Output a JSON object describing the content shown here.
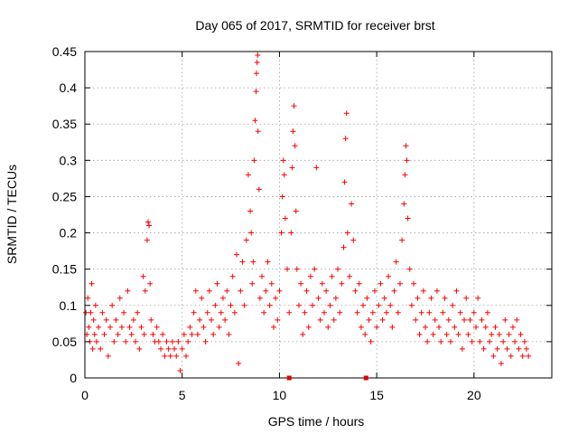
{
  "chart_data": {
    "type": "scatter",
    "title": "Day 065 of 2017, SRMTID for receiver brst",
    "xlabel": "GPS time / hours",
    "ylabel": "SRMTID / TECUs",
    "xlim": [
      0,
      24
    ],
    "ylim": [
      0,
      0.45
    ],
    "grid": true,
    "marker": "plus",
    "color": "#ff0000",
    "x_ticks": [
      0,
      5,
      10,
      15,
      20
    ],
    "x_tick_labels": [
      "0",
      "5",
      "10",
      "15",
      "20"
    ],
    "y_ticks": [
      0,
      0.05,
      0.1,
      0.15,
      0.2,
      0.25,
      0.3,
      0.35,
      0.4,
      0.45
    ],
    "y_tick_labels": [
      "0",
      "0.05",
      "0.1",
      "0.15",
      "0.2",
      "0.25",
      "0.3",
      "0.35",
      "0.4",
      "0.45"
    ],
    "axis_markers_x": [
      10.5,
      14.45
    ],
    "series": [
      {
        "name": "SRMTID",
        "points": [
          [
            0.05,
            0.09
          ],
          [
            0.1,
            0.06
          ],
          [
            0.15,
            0.11
          ],
          [
            0.2,
            0.07
          ],
          [
            0.25,
            0.05
          ],
          [
            0.3,
            0.09
          ],
          [
            0.35,
            0.13
          ],
          [
            0.4,
            0.04
          ],
          [
            0.45,
            0.08
          ],
          [
            0.5,
            0.06
          ],
          [
            0.55,
            0.1
          ],
          [
            0.6,
            0.05
          ],
          [
            0.7,
            0.07
          ],
          [
            0.8,
            0.04
          ],
          [
            0.9,
            0.09
          ],
          [
            1.0,
            0.06
          ],
          [
            1.1,
            0.08
          ],
          [
            1.2,
            0.03
          ],
          [
            1.3,
            0.07
          ],
          [
            1.4,
            0.1
          ],
          [
            1.5,
            0.05
          ],
          [
            1.6,
            0.08
          ],
          [
            1.7,
            0.06
          ],
          [
            1.8,
            0.11
          ],
          [
            1.9,
            0.07
          ],
          [
            2.0,
            0.09
          ],
          [
            2.1,
            0.05
          ],
          [
            2.2,
            0.12
          ],
          [
            2.3,
            0.07
          ],
          [
            2.4,
            0.06
          ],
          [
            2.5,
            0.08
          ],
          [
            2.6,
            0.05
          ],
          [
            2.7,
            0.09
          ],
          [
            2.8,
            0.04
          ],
          [
            2.9,
            0.07
          ],
          [
            3.0,
            0.14
          ],
          [
            3.05,
            0.06
          ],
          [
            3.1,
            0.12
          ],
          [
            3.2,
            0.19
          ],
          [
            3.25,
            0.215
          ],
          [
            3.3,
            0.21
          ],
          [
            3.35,
            0.13
          ],
          [
            3.4,
            0.08
          ],
          [
            3.5,
            0.06
          ],
          [
            3.6,
            0.05
          ],
          [
            3.7,
            0.07
          ],
          [
            3.8,
            0.05
          ],
          [
            3.9,
            0.04
          ],
          [
            4.0,
            0.06
          ],
          [
            4.1,
            0.03
          ],
          [
            4.2,
            0.05
          ],
          [
            4.3,
            0.04
          ],
          [
            4.4,
            0.03
          ],
          [
            4.5,
            0.05
          ],
          [
            4.6,
            0.04
          ],
          [
            4.7,
            0.03
          ],
          [
            4.8,
            0.05
          ],
          [
            4.9,
            0.01
          ],
          [
            5.0,
            0.04
          ],
          [
            5.1,
            0.06
          ],
          [
            5.2,
            0.03
          ],
          [
            5.3,
            0.05
          ],
          [
            5.4,
            0.07
          ],
          [
            5.5,
            0.06
          ],
          [
            5.6,
            0.09
          ],
          [
            5.7,
            0.12
          ],
          [
            5.8,
            0.06
          ],
          [
            5.9,
            0.08
          ],
          [
            6.0,
            0.11
          ],
          [
            6.1,
            0.07
          ],
          [
            6.2,
            0.05
          ],
          [
            6.3,
            0.09
          ],
          [
            6.4,
            0.12
          ],
          [
            6.5,
            0.08
          ],
          [
            6.6,
            0.06
          ],
          [
            6.7,
            0.1
          ],
          [
            6.8,
            0.13
          ],
          [
            6.9,
            0.07
          ],
          [
            7.0,
            0.09
          ],
          [
            7.1,
            0.11
          ],
          [
            7.2,
            0.08
          ],
          [
            7.3,
            0.12
          ],
          [
            7.4,
            0.06
          ],
          [
            7.5,
            0.1
          ],
          [
            7.6,
            0.14
          ],
          [
            7.7,
            0.09
          ],
          [
            7.8,
            0.17
          ],
          [
            7.9,
            0.02
          ],
          [
            8.0,
            0.12
          ],
          [
            8.1,
            0.16
          ],
          [
            8.2,
            0.1
          ],
          [
            8.3,
            0.19
          ],
          [
            8.4,
            0.28
          ],
          [
            8.5,
            0.23
          ],
          [
            8.55,
            0.2
          ],
          [
            8.6,
            0.13
          ],
          [
            8.65,
            0.16
          ],
          [
            8.7,
            0.3
          ],
          [
            8.75,
            0.355
          ],
          [
            8.8,
            0.395
          ],
          [
            8.82,
            0.42
          ],
          [
            8.85,
            0.435
          ],
          [
            8.88,
            0.445
          ],
          [
            8.9,
            0.34
          ],
          [
            8.95,
            0.26
          ],
          [
            9.0,
            0.11
          ],
          [
            9.1,
            0.14
          ],
          [
            9.2,
            0.09
          ],
          [
            9.3,
            0.12
          ],
          [
            9.4,
            0.16
          ],
          [
            9.5,
            0.1
          ],
          [
            9.6,
            0.13
          ],
          [
            9.7,
            0.07
          ],
          [
            9.8,
            0.11
          ],
          [
            9.9,
            0.08
          ],
          [
            10.0,
            0.12
          ],
          [
            10.1,
            0.2
          ],
          [
            10.15,
            0.25
          ],
          [
            10.2,
            0.3
          ],
          [
            10.25,
            0.28
          ],
          [
            10.3,
            0.22
          ],
          [
            10.4,
            0.15
          ],
          [
            10.5,
            0.09
          ],
          [
            10.6,
            0.2
          ],
          [
            10.65,
            0.29
          ],
          [
            10.7,
            0.34
          ],
          [
            10.75,
            0.375
          ],
          [
            10.8,
            0.32
          ],
          [
            10.85,
            0.23
          ],
          [
            10.9,
            0.15
          ],
          [
            11.0,
            0.1
          ],
          [
            11.1,
            0.13
          ],
          [
            11.2,
            0.06
          ],
          [
            11.3,
            0.09
          ],
          [
            11.4,
            0.12
          ],
          [
            11.5,
            0.07
          ],
          [
            11.6,
            0.14
          ],
          [
            11.7,
            0.1
          ],
          [
            11.8,
            0.15
          ],
          [
            11.9,
            0.29
          ],
          [
            12.0,
            0.11
          ],
          [
            12.1,
            0.08
          ],
          [
            12.2,
            0.13
          ],
          [
            12.3,
            0.09
          ],
          [
            12.4,
            0.12
          ],
          [
            12.5,
            0.07
          ],
          [
            12.6,
            0.1
          ],
          [
            12.7,
            0.14
          ],
          [
            12.8,
            0.08
          ],
          [
            12.9,
            0.11
          ],
          [
            13.0,
            0.15
          ],
          [
            13.1,
            0.09
          ],
          [
            13.2,
            0.13
          ],
          [
            13.3,
            0.18
          ],
          [
            13.35,
            0.27
          ],
          [
            13.4,
            0.33
          ],
          [
            13.45,
            0.365
          ],
          [
            13.5,
            0.2
          ],
          [
            13.6,
            0.14
          ],
          [
            13.7,
            0.24
          ],
          [
            13.8,
            0.19
          ],
          [
            13.9,
            0.12
          ],
          [
            14.0,
            0.09
          ],
          [
            14.1,
            0.13
          ],
          [
            14.2,
            0.07
          ],
          [
            14.3,
            0.1
          ],
          [
            14.4,
            0.06
          ],
          [
            14.5,
            0.11
          ],
          [
            14.6,
            0.08
          ],
          [
            14.7,
            0.05
          ],
          [
            14.8,
            0.09
          ],
          [
            14.9,
            0.12
          ],
          [
            15.0,
            0.07
          ],
          [
            15.1,
            0.1
          ],
          [
            15.2,
            0.13
          ],
          [
            15.3,
            0.08
          ],
          [
            15.4,
            0.11
          ],
          [
            15.5,
            0.09
          ],
          [
            15.6,
            0.14
          ],
          [
            15.7,
            0.1
          ],
          [
            15.8,
            0.07
          ],
          [
            15.9,
            0.12
          ],
          [
            16.0,
            0.16
          ],
          [
            16.1,
            0.09
          ],
          [
            16.2,
            0.13
          ],
          [
            16.3,
            0.19
          ],
          [
            16.4,
            0.24
          ],
          [
            16.45,
            0.28
          ],
          [
            16.5,
            0.32
          ],
          [
            16.55,
            0.3
          ],
          [
            16.6,
            0.22
          ],
          [
            16.7,
            0.15
          ],
          [
            16.8,
            0.1
          ],
          [
            16.9,
            0.13
          ],
          [
            17.0,
            0.08
          ],
          [
            17.1,
            0.11
          ],
          [
            17.2,
            0.06
          ],
          [
            17.3,
            0.09
          ],
          [
            17.4,
            0.12
          ],
          [
            17.5,
            0.07
          ],
          [
            17.6,
            0.05
          ],
          [
            17.7,
            0.09
          ],
          [
            17.8,
            0.11
          ],
          [
            17.9,
            0.06
          ],
          [
            18.0,
            0.08
          ],
          [
            18.1,
            0.12
          ],
          [
            18.2,
            0.07
          ],
          [
            18.3,
            0.05
          ],
          [
            18.4,
            0.09
          ],
          [
            18.5,
            0.11
          ],
          [
            18.6,
            0.06
          ],
          [
            18.7,
            0.08
          ],
          [
            18.8,
            0.05
          ],
          [
            18.9,
            0.1
          ],
          [
            19.0,
            0.07
          ],
          [
            19.1,
            0.12
          ],
          [
            19.2,
            0.06
          ],
          [
            19.3,
            0.09
          ],
          [
            19.4,
            0.04
          ],
          [
            19.5,
            0.08
          ],
          [
            19.6,
            0.11
          ],
          [
            19.7,
            0.06
          ],
          [
            19.8,
            0.08
          ],
          [
            19.9,
            0.05
          ],
          [
            20.0,
            0.09
          ],
          [
            20.1,
            0.07
          ],
          [
            20.2,
            0.11
          ],
          [
            20.3,
            0.05
          ],
          [
            20.4,
            0.08
          ],
          [
            20.5,
            0.04
          ],
          [
            20.6,
            0.07
          ],
          [
            20.7,
            0.09
          ],
          [
            20.8,
            0.05
          ],
          [
            20.9,
            0.06
          ],
          [
            21.0,
            0.03
          ],
          [
            21.1,
            0.07
          ],
          [
            21.2,
            0.04
          ],
          [
            21.3,
            0.06
          ],
          [
            21.4,
            0.02
          ],
          [
            21.5,
            0.05
          ],
          [
            21.6,
            0.08
          ],
          [
            21.7,
            0.04
          ],
          [
            21.8,
            0.06
          ],
          [
            21.9,
            0.03
          ],
          [
            22.0,
            0.07
          ],
          [
            22.1,
            0.05
          ],
          [
            22.2,
            0.08
          ],
          [
            22.3,
            0.04
          ],
          [
            22.4,
            0.06
          ],
          [
            22.5,
            0.03
          ],
          [
            22.6,
            0.05
          ],
          [
            22.7,
            0.04
          ],
          [
            22.8,
            0.03
          ]
        ]
      }
    ]
  }
}
